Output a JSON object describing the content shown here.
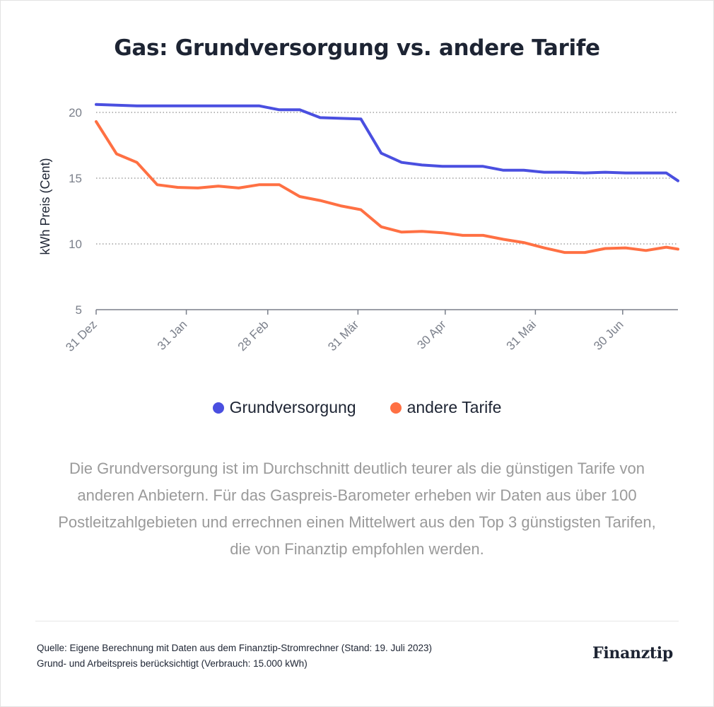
{
  "title": "Gas: Grundversorgung vs. andere Tarife",
  "chart_data": {
    "type": "line",
    "ylabel": "kWh Preis (Cent)",
    "ylim": [
      5,
      21
    ],
    "yticks": [
      5,
      10,
      15,
      20
    ],
    "grid": "horizontal dotted at 10, 15, 20",
    "legend_position": "bottom-center",
    "x": [
      "2022-12-31",
      "2023-01-07",
      "2023-01-14",
      "2023-01-21",
      "2023-01-28",
      "2023-02-04",
      "2023-02-11",
      "2023-02-18",
      "2023-02-25",
      "2023-03-04",
      "2023-03-11",
      "2023-03-18",
      "2023-03-25",
      "2023-04-01",
      "2023-04-08",
      "2023-04-15",
      "2023-04-22",
      "2023-04-29",
      "2023-05-06",
      "2023-05-13",
      "2023-05-20",
      "2023-05-27",
      "2023-06-03",
      "2023-06-10",
      "2023-06-17",
      "2023-06-24",
      "2023-07-01",
      "2023-07-08",
      "2023-07-15",
      "2023-07-19"
    ],
    "xticks": [
      {
        "date": "2022-12-31",
        "label": "31 Dez"
      },
      {
        "date": "2023-01-31",
        "label": "31 Jan"
      },
      {
        "date": "2023-02-28",
        "label": "28 Feb"
      },
      {
        "date": "2023-03-31",
        "label": "31 Mär"
      },
      {
        "date": "2023-04-30",
        "label": "30 Apr"
      },
      {
        "date": "2023-05-31",
        "label": "31 Mai"
      },
      {
        "date": "2023-06-30",
        "label": "30 Jun"
      }
    ],
    "series": [
      {
        "name": "Grundversorgung",
        "color": "#4a4fe0",
        "values": [
          20.6,
          20.55,
          20.5,
          20.5,
          20.5,
          20.5,
          20.5,
          20.5,
          20.5,
          20.2,
          20.2,
          19.6,
          19.55,
          19.5,
          16.9,
          16.2,
          16.0,
          15.9,
          15.9,
          15.9,
          15.6,
          15.6,
          15.45,
          15.45,
          15.4,
          15.45,
          15.4,
          15.4,
          15.4,
          14.8
        ]
      },
      {
        "name": "andere Tarife",
        "color": "#ff7043",
        "values": [
          19.3,
          16.85,
          16.2,
          14.5,
          14.3,
          14.25,
          14.4,
          14.25,
          14.5,
          14.5,
          13.6,
          13.3,
          12.9,
          12.6,
          11.3,
          10.9,
          10.95,
          10.85,
          10.65,
          10.65,
          10.35,
          10.1,
          9.7,
          9.35,
          9.35,
          9.65,
          9.7,
          9.5,
          9.75,
          9.6
        ]
      }
    ]
  },
  "description": "Die Grundversorgung ist im Durchschnitt deutlich teurer als die günstigen Tarife von anderen Anbietern. Für das Gaspreis-Barometer erheben wir Daten aus über 100 Postleitzahlgebieten und errechnen einen Mittelwert aus den Top 3 günstigsten Tarifen, die von Finanztip empfohlen werden.",
  "source": {
    "line1": "Quelle: Eigene Berechnung mit Daten aus dem Finanztip-Stromrechner (Stand: 19. Juli 2023)",
    "line2": "Grund- und Arbeitspreis berücksichtigt (Verbrauch: 15.000 kWh)"
  },
  "logo": "Finanztip"
}
